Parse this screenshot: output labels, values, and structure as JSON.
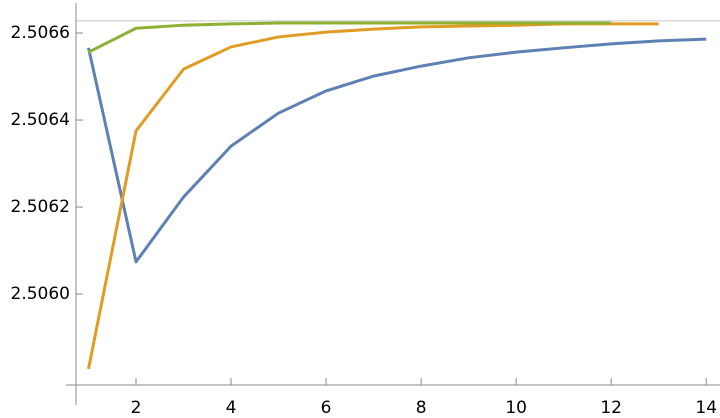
{
  "chart_data": {
    "type": "line",
    "x": [
      1,
      2,
      3,
      4,
      5,
      6,
      7,
      8,
      9,
      10,
      11,
      12,
      13,
      14
    ],
    "series": [
      {
        "color": "#5e81b5",
        "values": [
          2.506566,
          2.506074,
          2.506223,
          2.50634,
          2.506416,
          2.506467,
          2.506501,
          2.506524,
          2.506543,
          2.506556,
          2.506566,
          2.506575,
          2.506582,
          2.506586
        ]
      },
      {
        "color": "#e19c24",
        "values": [
          2.505828,
          2.506375,
          2.506517,
          2.506568,
          2.506591,
          2.506602,
          2.506609,
          2.506614,
          2.506616,
          2.506618,
          2.506621,
          2.506621,
          2.506621,
          null
        ]
      },
      {
        "color": "#8fb032",
        "values": [
          2.506556,
          2.506611,
          2.506618,
          2.506621,
          2.506623,
          2.506623,
          2.506623,
          2.506623,
          2.506623,
          2.506623,
          2.506623,
          2.506623,
          null,
          null
        ]
      }
    ],
    "reference_line": 2.506628,
    "xlim": [
      0.737,
      14.29
    ],
    "ylim": [
      2.505791,
      2.506669
    ],
    "xticks": [
      2,
      4,
      6,
      8,
      10,
      12,
      14
    ],
    "yticks": [
      {
        "value": 2.506,
        "label": "2.5060"
      },
      2.5062,
      2.5064,
      2.5066
    ]
  }
}
